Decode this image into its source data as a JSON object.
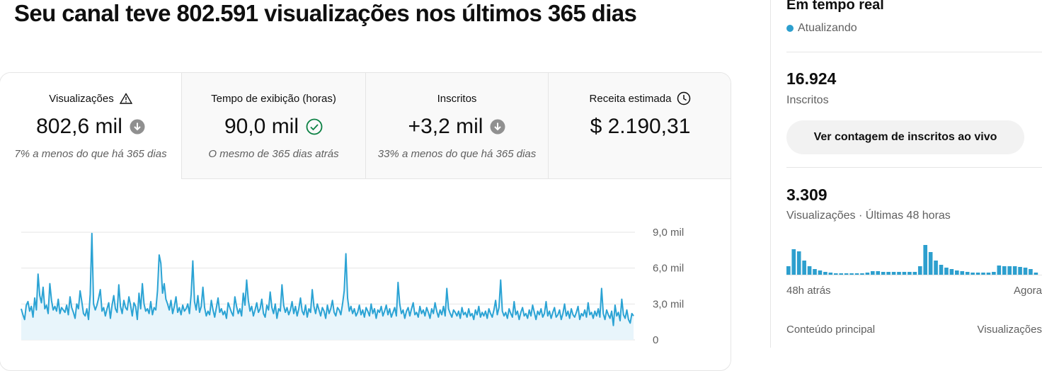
{
  "header": {
    "title": "Seu canal teve 802.591 visualizações nos últimos 365 dias"
  },
  "metrics": [
    {
      "label": "Visualizações",
      "value": "802,6 mil",
      "comparison": "7% a menos do que há 365 dias"
    },
    {
      "label": "Tempo de exibição (horas)",
      "value": "90,0 mil",
      "comparison": "O mesmo de 365 dias atrás"
    },
    {
      "label": "Inscritos",
      "value": "+3,2 mil",
      "comparison": "33% a menos do que há 365 dias"
    },
    {
      "label": "Receita estimada",
      "value": "$ 2.190,31",
      "comparison": ""
    }
  ],
  "realtime": {
    "title": "Em tempo real",
    "status": "Atualizando",
    "subscribers": {
      "value": "16.924",
      "label": "Inscritos"
    },
    "button": "Ver contagem de inscritos ao vivo",
    "views": {
      "value": "3.309",
      "label": "Visualizações · Últimas 48 horas"
    },
    "start_label": "48h atrás",
    "end_label": "Agora",
    "top_content": {
      "label": "Conteúdo principal",
      "column": "Visualizações"
    }
  },
  "chart_data": [
    {
      "type": "line",
      "color": "#2ba3d4",
      "fill": "#e8f5fb",
      "grid": true,
      "ylim": [
        0,
        9000
      ],
      "yticks": [
        0,
        {
          "value": 3000,
          "label": "3,0 mil"
        },
        {
          "value": 6000,
          "label": "6,0 mil"
        },
        {
          "value": 9000,
          "label": "9,0 mil"
        }
      ],
      "values": [
        2600,
        2100,
        1700,
        2900,
        3200,
        2400,
        2800,
        1900,
        3500,
        2500,
        5500,
        3700,
        3100,
        4400,
        2600,
        2900,
        2200,
        4700,
        3300,
        2500,
        2800,
        2400,
        3400,
        2200,
        2700,
        2500,
        2300,
        2900,
        2100,
        3600,
        2700,
        2300,
        1800,
        3000,
        2600,
        4100,
        3200,
        2200,
        2000,
        2600,
        1700,
        3800,
        8900,
        3000,
        2500,
        2900,
        3500,
        4200,
        2400,
        2700,
        2000,
        2600,
        3100,
        1800,
        2900,
        3700,
        2600,
        2300,
        4600,
        2800,
        2200,
        3300,
        2700,
        2500,
        3600,
        2900,
        2000,
        3100,
        2800,
        1700,
        3900,
        2600,
        4700,
        3000,
        2400,
        2600,
        2200,
        3200,
        2100,
        2700,
        2500,
        4100,
        7100,
        6400,
        3900,
        4700,
        3400,
        3000,
        2500,
        3300,
        2200,
        2800,
        3600,
        2300,
        2700,
        2100,
        2900,
        2400,
        2600,
        3000,
        2200,
        3800,
        6600,
        3200,
        2500,
        3700,
        2300,
        2800,
        4400,
        2700,
        2000,
        2400,
        2100,
        3300,
        2500,
        1900,
        2700,
        3500,
        2300,
        2600,
        2100,
        2400,
        1800,
        3100,
        2700,
        2300,
        2000,
        3600,
        2800,
        2200,
        2600,
        2000,
        3900,
        2900,
        5000,
        3300,
        2400,
        2800,
        2000,
        2500,
        3100,
        2300,
        2600,
        3400,
        2200,
        1900,
        2900,
        2500,
        4000,
        2700,
        2200,
        3000,
        1800,
        2600,
        2400,
        4600,
        2900,
        2300,
        2700,
        2100,
        2500,
        3200,
        2200,
        2800,
        2000,
        2600,
        3500,
        2400,
        2100,
        2900,
        1900,
        2600,
        2300,
        4200,
        2800,
        2200,
        3000,
        2500,
        2000,
        2700,
        2400,
        1800,
        2900,
        2200,
        2600,
        3300,
        2300,
        2000,
        2700,
        2500,
        2100,
        3000,
        4100,
        7200,
        3500,
        2400,
        2800,
        2200,
        2600,
        2000,
        2300,
        2900,
        2100,
        2500,
        1900,
        2700,
        2400,
        2000,
        3000,
        2200,
        2600,
        1800,
        2500,
        2300,
        2800,
        2000,
        2400,
        2900,
        2100,
        2600,
        1900,
        2300,
        2700,
        2000,
        4800,
        3000,
        2200,
        2500,
        1800,
        2400,
        2700,
        2000,
        2600,
        3100,
        2100,
        2300,
        1900,
        2800,
        2200,
        2500,
        2000,
        2700,
        2300,
        1800,
        2600,
        2200,
        3100,
        2400,
        1900,
        2500,
        2100,
        2800,
        2000,
        4300,
        2600,
        2200,
        1900,
        2500,
        2300,
        2000,
        2400,
        1800,
        2700,
        2100,
        2300,
        1900,
        2600,
        2000,
        2200,
        1700,
        2500,
        2100,
        2800,
        1900,
        2300,
        2000,
        2400,
        1800,
        2600,
        2200,
        1900,
        2500,
        3300,
        2100,
        2700,
        5000,
        2400,
        2000,
        2300,
        1800,
        2600,
        2200,
        1900,
        3200,
        2100,
        2400,
        1700,
        2300,
        2700,
        2000,
        2200,
        1800,
        2500,
        2000,
        2900,
        2300,
        1700,
        2400,
        2100,
        2600,
        1900,
        2200,
        3200,
        2000,
        2400,
        1800,
        2300,
        2700,
        1900,
        2100,
        2500,
        1700,
        2200,
        3000,
        2000,
        2400,
        1800,
        2600,
        2100,
        1900,
        2300,
        2800,
        1700,
        2200,
        2000,
        2500,
        1900,
        3100,
        2100,
        2300,
        1800,
        2400,
        2000,
        2600,
        1900,
        4300,
        2200,
        1700,
        2500,
        2100,
        1800,
        2400,
        1200,
        2900,
        2000,
        2300,
        1600,
        3400,
        2100,
        1800,
        2500,
        1700,
        1400,
        2200,
        2000
      ]
    },
    {
      "type": "bar",
      "color": "#2d9fce",
      "values": [
        96,
        288,
        264,
        160,
        96,
        64,
        48,
        32,
        24,
        16,
        16,
        16,
        16,
        16,
        16,
        24,
        40,
        40,
        32,
        32,
        32,
        32,
        32,
        32,
        32,
        96,
        336,
        256,
        160,
        112,
        80,
        64,
        48,
        40,
        32,
        24,
        24,
        24,
        24,
        32,
        104,
        96,
        96,
        96,
        88,
        80,
        64,
        24
      ]
    }
  ]
}
